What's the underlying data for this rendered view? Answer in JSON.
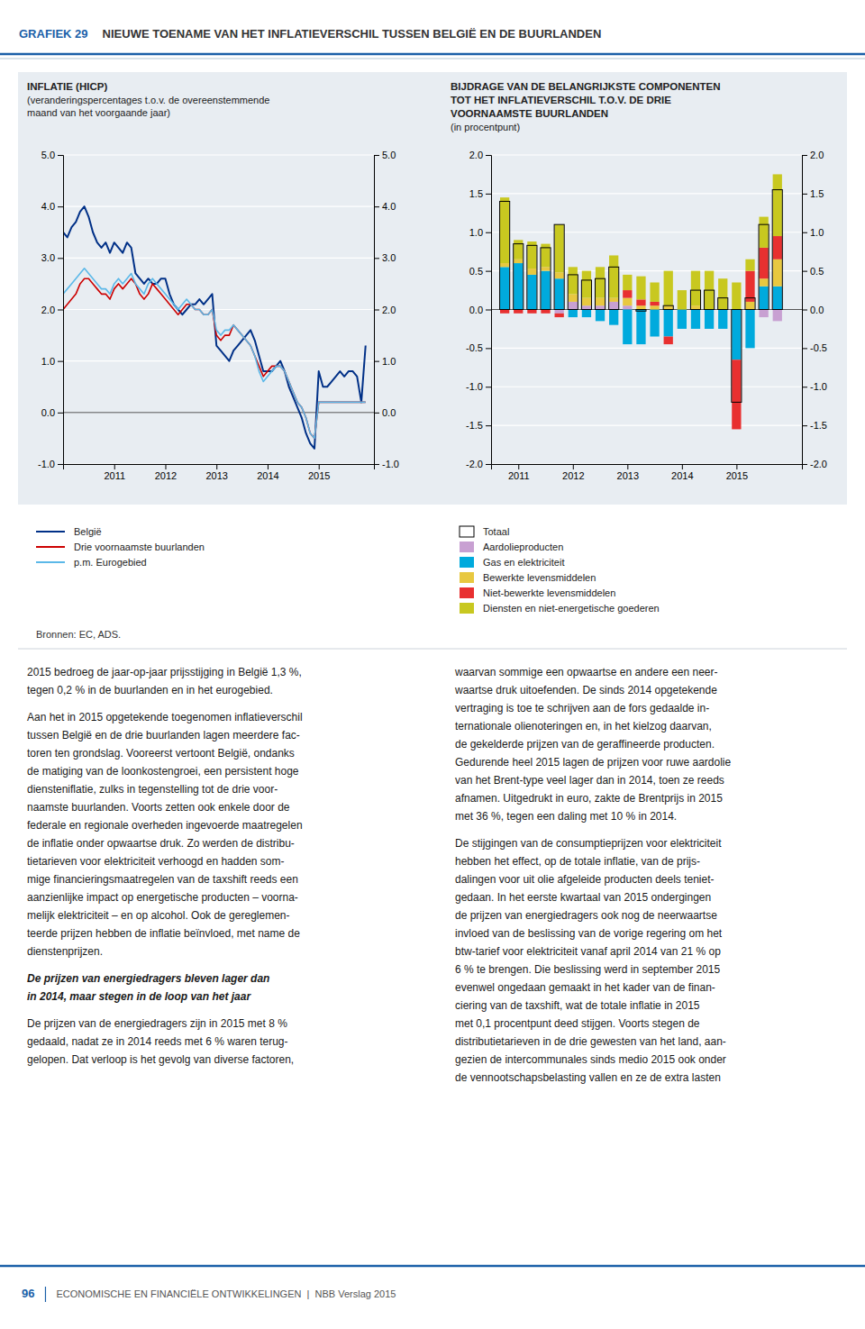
{
  "page": {
    "label": "GRAFIEK 29",
    "title": "NIEUWE TOENAME VAN HET INFLATIEVERSCHIL TUSSEN BELGIË EN DE BUURLANDEN",
    "background_color": "#e8edf2",
    "source": "Bronnen: EC, ADS.",
    "body_columns": [
      [
        {
          "lines": [
            "2015 bedroeg de jaar-op-jaar prijsstijging in België 1,3 %,",
            "tegen 0,2 % in de buurlanden en in het eurogebied."
          ]
        },
        {
          "lines": [
            "Aan het in 2015 opgetekende toegenomen inflatieverschil",
            "tussen België en de drie buurlanden lagen meerdere fac-",
            "toren ten grondslag. Vooreerst vertoont België, ondanks",
            "de matiging van de loonkostengroei, een persistent hoge",
            "diensteniflatie, zulks in tegenstelling tot de drie voor-",
            "naamste buurlanden. Voorts zetten ook enkele door de",
            "federale en regionale overheden ingevoerde maatregelen",
            "de inflatie onder opwaartse druk. Zo werden de distribu-",
            "tietarieven voor elektriciteit verhoogd en hadden som-",
            "mige financieringsmaatregelen van de taxshift reeds een",
            "aanzienlijke impact op energetische producten – voorna-",
            "melijk elektriciteit – en op alcohol. Ook de gereglemen-",
            "teerde prijzen hebben de inflatie beïnvloed, met name de",
            "dienstenprijzen."
          ]
        },
        {
          "heading": [
            "De prijzen van energiedragers bleven lager dan",
            "in 2014, maar stegen in de loop van het jaar"
          ]
        },
        {
          "lines": [
            "De prijzen van de energiedragers zijn in 2015 met 8 %",
            "gedaald, nadat ze in 2014 reeds met 6 % waren terug-",
            "gelopen. Dat verloop is het gevolg van diverse factoren,"
          ]
        }
      ],
      [
        {
          "lines": [
            "waarvan sommige een opwaartse en andere een neer-",
            "waartse druk uitoefenden. De sinds 2014 opgetekende",
            "vertraging is toe te schrijven aan de fors gedaalde in-",
            "ternationale olienoteringen en, in het kielzog daarvan,",
            "de gekelderde prijzen van de geraffineerde producten.",
            "Gedurende heel 2015 lagen de prijzen voor ruwe aardolie",
            "van het Brent-type veel lager dan in 2014, toen ze reeds",
            "afnamen. Uitgedrukt in euro, zakte de Brentprijs in 2015",
            "met 36 %, tegen een daling met 10 % in 2014."
          ]
        },
        {
          "lines": [
            "De stijgingen van de consumptieprijzen voor elektriciteit",
            "hebben het effect, op de totale inflatie, van de prijs-",
            "dalingen voor uit olie afgeleide producten deels teniet-",
            "gedaan. In het eerste kwartaal van 2015 ondergingen",
            "de prijzen van energiedragers ook nog de neerwaartse",
            "invloed van de beslissing van de vorige regering om het",
            "btw-tarief voor elektriciteit vanaf april 2014 van 21 % op",
            "6 % te brengen. Die beslissing werd in september 2015",
            "evenwel ongedaan gemaakt in het kader van de finan-",
            "ciering van de taxshift, wat de totale inflatie in 2015",
            "met 0,1 procentpunt deed stijgen. Voorts stegen de",
            "distributietarieven in de drie gewesten van het land, aan-",
            "gezien de intercommunales sinds medio 2015 ook onder",
            "de vennootschapsbelasting vallen en ze de extra lasten"
          ]
        }
      ]
    ],
    "page_number": "96",
    "footer": "ECONOMISCHE EN FINANCIËLE ONTWIKKELINGEN  |  NBB Verslag 2015"
  },
  "chart_data": [
    {
      "type": "line",
      "title": "INFLATIE (HICP)",
      "subtitle": [
        "(veranderingspercentages t.o.v. de overeenstemmende",
        "maand van het voorgaande jaar)"
      ],
      "x": [
        2010.0,
        2010.0833333333333,
        2010.1666666666667,
        2010.25,
        2010.3333333333333,
        2010.4166666666667,
        2010.5,
        2010.5833333333333,
        2010.6666666666667,
        2010.75,
        2010.8333333333333,
        2010.9166666666667,
        2011.0,
        2011.0833333333333,
        2011.1666666666667,
        2011.25,
        2011.3333333333333,
        2011.4166666666667,
        2011.5,
        2011.5833333333333,
        2011.6666666666667,
        2011.75,
        2011.8333333333333,
        2011.9166666666667,
        2012.0,
        2012.0833333333333,
        2012.1666666666667,
        2012.25,
        2012.3333333333333,
        2012.4166666666667,
        2012.5,
        2012.5833333333333,
        2012.6666666666667,
        2012.75,
        2012.8333333333333,
        2012.9166666666667,
        2013.0,
        2013.0833333333333,
        2013.1666666666667,
        2013.25,
        2013.3333333333333,
        2013.4166666666667,
        2013.5,
        2013.5833333333333,
        2013.6666666666667,
        2013.75,
        2013.8333333333333,
        2013.9166666666667,
        2014.0,
        2014.0833333333333,
        2014.1666666666667,
        2014.25,
        2014.3333333333333,
        2014.4166666666667,
        2014.5,
        2014.5833333333333,
        2014.6666666666667,
        2014.75,
        2014.8333333333333,
        2014.9166666666667,
        2015.0,
        2015.0833333333333,
        2015.1666666666667,
        2015.25,
        2015.3333333333333,
        2015.4166666666667,
        2015.5,
        2015.5833333333333,
        2015.6666666666667,
        2015.75,
        2015.8333333333333,
        2015.9166666666667
      ],
      "xlim": [
        2010.0,
        2016.08
      ],
      "xticks": [
        2011,
        2012,
        2013,
        2014,
        2015
      ],
      "ylim": [
        -1,
        5
      ],
      "yticks": [
        {
          "value": -1,
          "label": "-1.0"
        },
        {
          "value": 0,
          "label": "0.0"
        },
        {
          "value": 1,
          "label": "1.0"
        },
        {
          "value": 2,
          "label": "2.0"
        },
        {
          "value": 3,
          "label": "3.0"
        },
        {
          "value": 4,
          "label": "4.0"
        },
        {
          "value": 5,
          "label": "5.0"
        }
      ],
      "y2lim": [
        -1,
        5
      ],
      "y2ticks": [
        {
          "value": -1,
          "label": "-1.0"
        },
        {
          "value": 0,
          "label": "0.0"
        },
        {
          "value": 1,
          "label": "1.0"
        },
        {
          "value": 2,
          "label": "2.0"
        },
        {
          "value": 3,
          "label": "3.0"
        },
        {
          "value": 4,
          "label": "4.0"
        },
        {
          "value": 5,
          "label": "5.0"
        }
      ],
      "grid": true,
      "legend": "bottom",
      "series": [
        {
          "name": "België",
          "color": "#003087",
          "values": [
            3.5,
            3.4,
            3.6,
            3.7,
            3.9,
            4.0,
            3.8,
            3.5,
            3.3,
            3.2,
            3.3,
            3.1,
            3.3,
            3.2,
            3.1,
            3.3,
            3.2,
            2.7,
            2.6,
            2.5,
            2.6,
            2.5,
            2.5,
            2.6,
            2.6,
            2.3,
            2.1,
            2.0,
            1.9,
            2.0,
            2.1,
            2.1,
            2.2,
            2.1,
            2.2,
            2.3,
            1.3,
            1.2,
            1.1,
            1.0,
            1.2,
            1.3,
            1.4,
            1.5,
            1.6,
            1.4,
            1.1,
            0.8,
            0.8,
            0.8,
            0.9,
            1.0,
            0.8,
            0.5,
            0.3,
            0.1,
            -0.1,
            -0.4,
            -0.6,
            -0.7,
            0.8,
            0.5,
            0.5,
            0.6,
            0.7,
            0.8,
            0.7,
            0.8,
            0.8,
            0.7,
            0.2,
            1.3
          ]
        },
        {
          "name": "Drie voornaamste buurlanden",
          "color": "#cc0000",
          "values": [
            2.0,
            2.1,
            2.2,
            2.3,
            2.5,
            2.6,
            2.6,
            2.5,
            2.4,
            2.3,
            2.3,
            2.2,
            2.4,
            2.5,
            2.4,
            2.5,
            2.6,
            2.5,
            2.3,
            2.2,
            2.3,
            2.5,
            2.4,
            2.3,
            2.2,
            2.1,
            2.0,
            1.9,
            2.0,
            2.1,
            2.1,
            2.0,
            2.0,
            1.9,
            1.9,
            2.0,
            1.5,
            1.4,
            1.5,
            1.5,
            1.7,
            1.6,
            1.5,
            1.4,
            1.3,
            1.1,
            0.9,
            0.7,
            0.8,
            0.9,
            0.9,
            0.9,
            0.8,
            0.6,
            0.4,
            0.2,
            0.1,
            -0.1,
            -0.4,
            -0.5,
            0.2,
            0.2,
            0.2,
            0.2,
            0.2,
            0.2,
            0.2,
            0.2,
            0.2,
            0.2,
            0.2,
            0.2
          ]
        },
        {
          "name": "p.m. Eurogebied",
          "color": "#5bb8e8",
          "values": [
            2.3,
            2.4,
            2.5,
            2.6,
            2.7,
            2.8,
            2.7,
            2.6,
            2.5,
            2.4,
            2.4,
            2.3,
            2.5,
            2.6,
            2.5,
            2.6,
            2.7,
            2.5,
            2.4,
            2.3,
            2.5,
            2.6,
            2.5,
            2.4,
            2.3,
            2.2,
            2.1,
            2.0,
            2.1,
            2.2,
            2.1,
            2.0,
            2.0,
            1.9,
            1.9,
            2.0,
            1.6,
            1.5,
            1.6,
            1.6,
            1.7,
            1.6,
            1.5,
            1.4,
            1.3,
            1.1,
            0.8,
            0.6,
            0.7,
            0.8,
            0.9,
            0.9,
            0.8,
            0.6,
            0.4,
            0.2,
            0.1,
            -0.1,
            -0.4,
            -0.5,
            0.2,
            0.2,
            0.2,
            0.2,
            0.2,
            0.2,
            0.2,
            0.2,
            0.2,
            0.2,
            0.2,
            0.2
          ]
        }
      ]
    },
    {
      "type": "bar",
      "stacked": true,
      "title": [
        "BIJDRAGE VAN DE BELANGRIJKSTE COMPONENTEN",
        "TOT HET INFLATIEVERSCHIL T.O.V. DE DRIE",
        "VOORNAAMSTE BUURLANDEN"
      ],
      "subtitle": "(in procentpunt)",
      "x": [
        2010.75,
        2011.0,
        2011.25,
        2011.5,
        2011.75,
        2012.0,
        2012.25,
        2012.5,
        2012.75,
        2013.0,
        2013.25,
        2013.5,
        2013.75,
        2014.0,
        2014.25,
        2014.5,
        2014.75,
        2015.0,
        2015.25,
        2015.5,
        2015.75
      ],
      "xlim": [
        2010.5,
        2016.2
      ],
      "xticks": [
        2011,
        2012,
        2013,
        2014,
        2015
      ],
      "ylim": [
        -2,
        2
      ],
      "yticks": [
        {
          "value": -2,
          "label": "-2.0"
        },
        {
          "value": -1.5,
          "label": "-1.5"
        },
        {
          "value": -1,
          "label": "-1.0"
        },
        {
          "value": -0.5,
          "label": "-0.5"
        },
        {
          "value": 0,
          "label": "0.0"
        },
        {
          "value": 0.5,
          "label": "0.5"
        },
        {
          "value": 1,
          "label": "1.0"
        },
        {
          "value": 1.5,
          "label": "1.5"
        },
        {
          "value": 2,
          "label": "2.0"
        }
      ],
      "y2lim": [
        -2,
        2
      ],
      "y2ticks": [
        {
          "value": -2,
          "label": "-2.0"
        },
        {
          "value": -1.5,
          "label": "-1.5"
        },
        {
          "value": -1,
          "label": "-1.0"
        },
        {
          "value": -0.5,
          "label": "-0.5"
        },
        {
          "value": 0,
          "label": "0.0"
        },
        {
          "value": 0.5,
          "label": "0.5"
        },
        {
          "value": 1,
          "label": "1.0"
        },
        {
          "value": 1.5,
          "label": "1.5"
        },
        {
          "value": 2,
          "label": "2.0"
        }
      ],
      "grid": true,
      "legend": "bottom",
      "series": [
        {
          "name": "Totaal",
          "type": "outline",
          "color": "#000000",
          "values": [
            1.4,
            0.85,
            0.83,
            0.8,
            1.1,
            0.45,
            0.38,
            0.4,
            0.55,
            0.0,
            -0.02,
            0.0,
            0.05,
            0.0,
            0.25,
            0.25,
            0.15,
            -1.2,
            0.15,
            1.1,
            1.55
          ]
        },
        {
          "name": "Aardolieproducten",
          "color": "#c8a0d2",
          "values": [
            0.0,
            0.0,
            0.0,
            0.0,
            -0.05,
            0.1,
            0.05,
            0.05,
            0.1,
            0.05,
            0.0,
            0.0,
            0.0,
            0.0,
            0.0,
            0.0,
            0.0,
            0.0,
            0.0,
            -0.1,
            -0.15
          ]
        },
        {
          "name": "Gas en elektriciteit",
          "color": "#00aadd",
          "values": [
            0.55,
            0.6,
            0.45,
            0.5,
            0.4,
            -0.1,
            -0.1,
            -0.15,
            -0.2,
            -0.45,
            -0.45,
            -0.35,
            -0.35,
            -0.25,
            -0.25,
            -0.25,
            -0.25,
            -0.65,
            -0.5,
            0.3,
            0.3
          ]
        },
        {
          "name": "Bewerkte levensmiddelen",
          "color": "#e8c840",
          "values": [
            0.05,
            0.05,
            0.08,
            0.05,
            0.08,
            0.1,
            0.1,
            0.1,
            0.05,
            0.1,
            0.05,
            0.05,
            0.05,
            0.0,
            0.05,
            0.0,
            0.0,
            0.0,
            0.1,
            0.1,
            0.35
          ]
        },
        {
          "name": "Niet-bewerkte levensmiddelen",
          "color": "#e83030",
          "values": [
            -0.05,
            -0.05,
            -0.05,
            -0.05,
            -0.05,
            0.0,
            0.0,
            0.0,
            0.0,
            0.1,
            0.08,
            0.05,
            -0.1,
            0.0,
            0.0,
            0.0,
            0.0,
            -0.9,
            0.4,
            0.4,
            0.3
          ]
        },
        {
          "name": "Diensten en niet-energetische goederen",
          "color": "#c8c820",
          "values": [
            0.85,
            0.25,
            0.35,
            0.3,
            0.62,
            0.35,
            0.35,
            0.4,
            0.55,
            0.2,
            0.3,
            0.25,
            0.45,
            0.25,
            0.45,
            0.5,
            0.4,
            0.35,
            0.15,
            0.4,
            0.8
          ]
        }
      ]
    }
  ]
}
